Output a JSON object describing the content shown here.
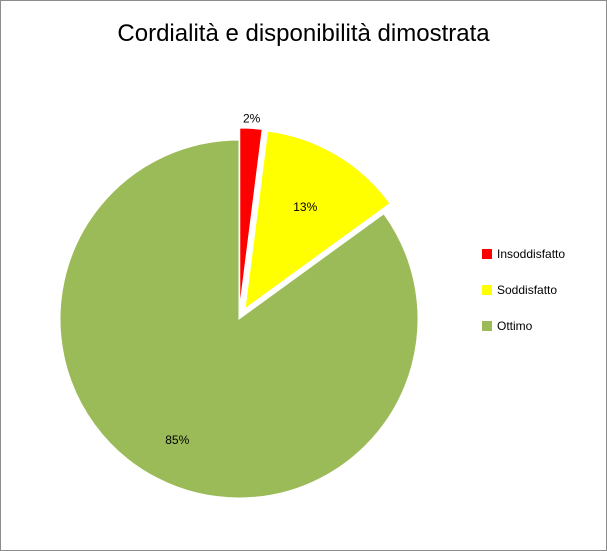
{
  "chart_data": {
    "type": "pie",
    "title": "Cordialità e disponibilità dimostrata",
    "categories": [
      "Insoddisfatto",
      "Soddisfatto",
      "Ottimo"
    ],
    "values": [
      2,
      13,
      85
    ],
    "labels": [
      "2%",
      "13%",
      "85%"
    ],
    "colors": [
      "#ff0000",
      "#ffff00",
      "#9bbb59"
    ],
    "exploded": [
      true,
      true,
      false
    ],
    "legend": "right"
  }
}
